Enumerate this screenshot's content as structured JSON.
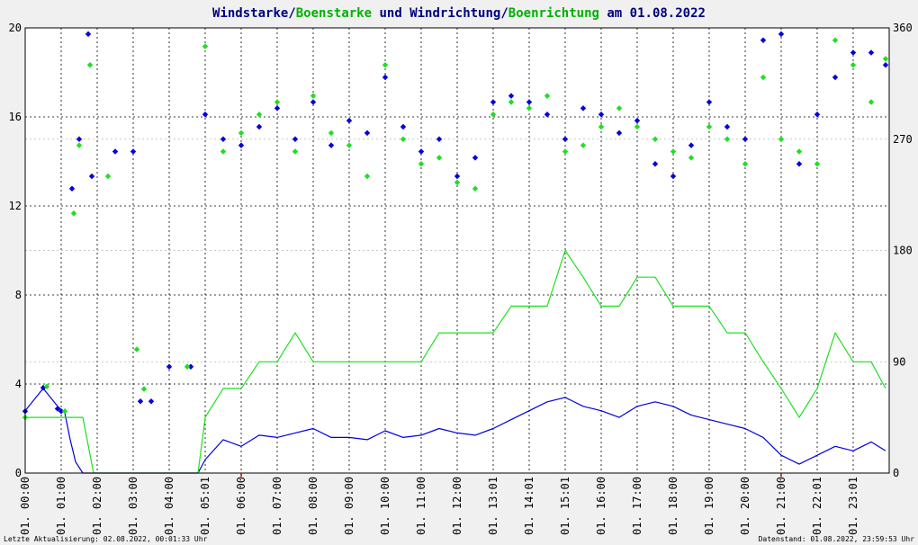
{
  "title": {
    "part1": "Windstarke",
    "sep1": "/",
    "part2": "Boenstarke",
    "part3": " und ",
    "part4": "Windrichtung",
    "sep2": "/",
    "part5": "Boenrichtung",
    "part6": " am 01.08.2022"
  },
  "footer": {
    "left": "Letzte Aktualisierung: 02.08.2022, 00:01:33 Uhr",
    "right": "Datenstand: 01.08.2022, 23:59:53 Uhr"
  },
  "colors": {
    "speed": "#0000e0",
    "gust": "#1ee01e",
    "title_dark": "#000080",
    "title_green": "#00b000",
    "marker": "#c00000"
  },
  "chart_data": {
    "type": "line",
    "x_unit": "hour of day",
    "x_range": [
      0,
      24
    ],
    "x_tick_labels": [
      "01. 00:00",
      "01. 01:00",
      "01. 02:00",
      "01. 03:00",
      "01. 04:00",
      "01. 05:01",
      "01. 06:00",
      "01. 07:00",
      "01. 08:00",
      "01. 09:00",
      "01. 10:00",
      "01. 11:00",
      "01. 12:00",
      "01. 13:01",
      "01. 14:01",
      "01. 15:01",
      "01. 16:00",
      "01. 17:00",
      "01. 18:00",
      "01. 19:00",
      "01. 20:00",
      "01. 21:00",
      "01. 22:01",
      "01. 23:01"
    ],
    "y_left": {
      "range": [
        0,
        20
      ],
      "ticks": [
        0,
        4,
        8,
        12,
        16,
        20
      ]
    },
    "y_right": {
      "range": [
        0,
        360
      ],
      "ticks": [
        0,
        90,
        180,
        270,
        360
      ]
    },
    "grid": true,
    "markers_at_hours": [
      6,
      21
    ],
    "series": [
      {
        "name": "Windstarke",
        "axis": "left",
        "style": "line",
        "points": [
          [
            0,
            2.8
          ],
          [
            0.5,
            3.8
          ],
          [
            0.9,
            3.0
          ],
          [
            1.1,
            2.7
          ],
          [
            1.25,
            1.5
          ],
          [
            1.4,
            0.5
          ],
          [
            1.6,
            0
          ],
          [
            1.9,
            0
          ],
          [
            2.3,
            0
          ],
          [
            3.0,
            0
          ],
          [
            4.0,
            0
          ],
          [
            4.8,
            0
          ],
          [
            5.0,
            0.6
          ],
          [
            5.5,
            1.5
          ],
          [
            6.0,
            1.2
          ],
          [
            6.5,
            1.7
          ],
          [
            7.0,
            1.6
          ],
          [
            7.5,
            1.8
          ],
          [
            8.0,
            2.0
          ],
          [
            8.5,
            1.6
          ],
          [
            9.0,
            1.6
          ],
          [
            9.5,
            1.5
          ],
          [
            10.0,
            1.9
          ],
          [
            10.5,
            1.6
          ],
          [
            11.0,
            1.7
          ],
          [
            11.5,
            2.0
          ],
          [
            12.0,
            1.8
          ],
          [
            12.5,
            1.7
          ],
          [
            13.0,
            2.0
          ],
          [
            13.5,
            2.4
          ],
          [
            14.0,
            2.8
          ],
          [
            14.5,
            3.2
          ],
          [
            15.0,
            3.4
          ],
          [
            15.5,
            3.0
          ],
          [
            16.0,
            2.8
          ],
          [
            16.5,
            2.5
          ],
          [
            17.0,
            3.0
          ],
          [
            17.5,
            3.2
          ],
          [
            18.0,
            3.0
          ],
          [
            18.5,
            2.6
          ],
          [
            19.0,
            2.4
          ],
          [
            19.5,
            2.2
          ],
          [
            20.0,
            2.0
          ],
          [
            20.5,
            1.6
          ],
          [
            21.0,
            0.8
          ],
          [
            21.5,
            0.4
          ],
          [
            22.0,
            0.8
          ],
          [
            22.5,
            1.2
          ],
          [
            23.0,
            1.0
          ],
          [
            23.5,
            1.4
          ],
          [
            23.9,
            1.0
          ]
        ]
      },
      {
        "name": "Boenstarke",
        "axis": "left",
        "style": "line",
        "points": [
          [
            0,
            2.5
          ],
          [
            0.5,
            2.5
          ],
          [
            1.1,
            2.5
          ],
          [
            1.4,
            2.5
          ],
          [
            1.6,
            2.5
          ],
          [
            1.9,
            0
          ],
          [
            2.3,
            0
          ],
          [
            3.0,
            0
          ],
          [
            4.0,
            0
          ],
          [
            4.8,
            0
          ],
          [
            5.0,
            2.5
          ],
          [
            5.5,
            3.8
          ],
          [
            6.0,
            3.8
          ],
          [
            6.5,
            5.0
          ],
          [
            7.0,
            5.0
          ],
          [
            7.5,
            6.3
          ],
          [
            8.0,
            5.0
          ],
          [
            8.5,
            5.0
          ],
          [
            9.0,
            5.0
          ],
          [
            9.5,
            5.0
          ],
          [
            10.0,
            5.0
          ],
          [
            10.5,
            5.0
          ],
          [
            11.0,
            5.0
          ],
          [
            11.5,
            6.3
          ],
          [
            12.0,
            6.3
          ],
          [
            12.5,
            6.3
          ],
          [
            13.0,
            6.3
          ],
          [
            13.5,
            7.5
          ],
          [
            14.0,
            7.5
          ],
          [
            14.5,
            7.5
          ],
          [
            15.0,
            10.0
          ],
          [
            15.5,
            8.8
          ],
          [
            16.0,
            7.5
          ],
          [
            16.5,
            7.5
          ],
          [
            17.0,
            8.8
          ],
          [
            17.5,
            8.8
          ],
          [
            18.0,
            7.5
          ],
          [
            18.5,
            7.5
          ],
          [
            19.0,
            7.5
          ],
          [
            19.5,
            6.3
          ],
          [
            20.0,
            6.3
          ],
          [
            20.5,
            5.0
          ],
          [
            21.0,
            3.8
          ],
          [
            21.5,
            2.5
          ],
          [
            22.0,
            3.8
          ],
          [
            22.5,
            6.3
          ],
          [
            23.0,
            5.0
          ],
          [
            23.5,
            5.0
          ],
          [
            23.9,
            3.8
          ]
        ]
      },
      {
        "name": "Windrichtung",
        "axis": "right",
        "style": "points",
        "points": [
          [
            0,
            50
          ],
          [
            0.5,
            69
          ],
          [
            0.9,
            52
          ],
          [
            1.0,
            50
          ],
          [
            1.3,
            230
          ],
          [
            1.5,
            270
          ],
          [
            1.75,
            355
          ],
          [
            1.85,
            240
          ],
          [
            2.5,
            260
          ],
          [
            3.0,
            260
          ],
          [
            3.2,
            58
          ],
          [
            3.5,
            58
          ],
          [
            4.0,
            86
          ],
          [
            4.6,
            86
          ],
          [
            5.0,
            290
          ],
          [
            5.5,
            270
          ],
          [
            6.0,
            265
          ],
          [
            6.5,
            280
          ],
          [
            7.0,
            295
          ],
          [
            7.5,
            270
          ],
          [
            8.0,
            300
          ],
          [
            8.5,
            265
          ],
          [
            9.0,
            285
          ],
          [
            9.5,
            275
          ],
          [
            10.0,
            320
          ],
          [
            10.5,
            280
          ],
          [
            11.0,
            260
          ],
          [
            11.5,
            270
          ],
          [
            12.0,
            240
          ],
          [
            12.5,
            255
          ],
          [
            13.0,
            300
          ],
          [
            13.5,
            305
          ],
          [
            14.0,
            300
          ],
          [
            14.5,
            290
          ],
          [
            15.0,
            270
          ],
          [
            15.5,
            295
          ],
          [
            16.0,
            290
          ],
          [
            16.5,
            275
          ],
          [
            17.0,
            285
          ],
          [
            17.5,
            250
          ],
          [
            18.0,
            240
          ],
          [
            18.5,
            265
          ],
          [
            19.0,
            300
          ],
          [
            19.5,
            280
          ],
          [
            20.0,
            270
          ],
          [
            20.5,
            350
          ],
          [
            21.0,
            355
          ],
          [
            21.5,
            250
          ],
          [
            22.0,
            290
          ],
          [
            22.5,
            320
          ],
          [
            23.0,
            340
          ],
          [
            23.5,
            340
          ],
          [
            23.9,
            330
          ]
        ]
      },
      {
        "name": "Boenrichtung",
        "axis": "right",
        "style": "points",
        "points": [
          [
            0,
            45
          ],
          [
            0.6,
            70
          ],
          [
            1.1,
            50
          ],
          [
            1.35,
            210
          ],
          [
            1.5,
            265
          ],
          [
            1.8,
            330
          ],
          [
            2.3,
            240
          ],
          [
            3.1,
            100
          ],
          [
            3.3,
            68
          ],
          [
            4.5,
            86
          ],
          [
            5.0,
            345
          ],
          [
            5.5,
            260
          ],
          [
            6.0,
            275
          ],
          [
            6.5,
            290
          ],
          [
            7.0,
            300
          ],
          [
            7.5,
            260
          ],
          [
            8.0,
            305
          ],
          [
            8.5,
            275
          ],
          [
            9.0,
            265
          ],
          [
            9.5,
            240
          ],
          [
            10.0,
            330
          ],
          [
            10.5,
            270
          ],
          [
            11.0,
            250
          ],
          [
            11.5,
            255
          ],
          [
            12.0,
            235
          ],
          [
            12.5,
            230
          ],
          [
            13.0,
            290
          ],
          [
            13.5,
            300
          ],
          [
            14.0,
            295
          ],
          [
            14.5,
            305
          ],
          [
            15.0,
            260
          ],
          [
            15.5,
            265
          ],
          [
            16.0,
            280
          ],
          [
            16.5,
            295
          ],
          [
            17.0,
            280
          ],
          [
            17.5,
            270
          ],
          [
            18.0,
            260
          ],
          [
            18.5,
            255
          ],
          [
            19.0,
            280
          ],
          [
            19.5,
            270
          ],
          [
            20.0,
            250
          ],
          [
            20.5,
            320
          ],
          [
            21.0,
            270
          ],
          [
            21.5,
            260
          ],
          [
            22.0,
            250
          ],
          [
            22.5,
            350
          ],
          [
            23.0,
            330
          ],
          [
            23.5,
            300
          ],
          [
            23.9,
            335
          ]
        ]
      }
    ]
  }
}
